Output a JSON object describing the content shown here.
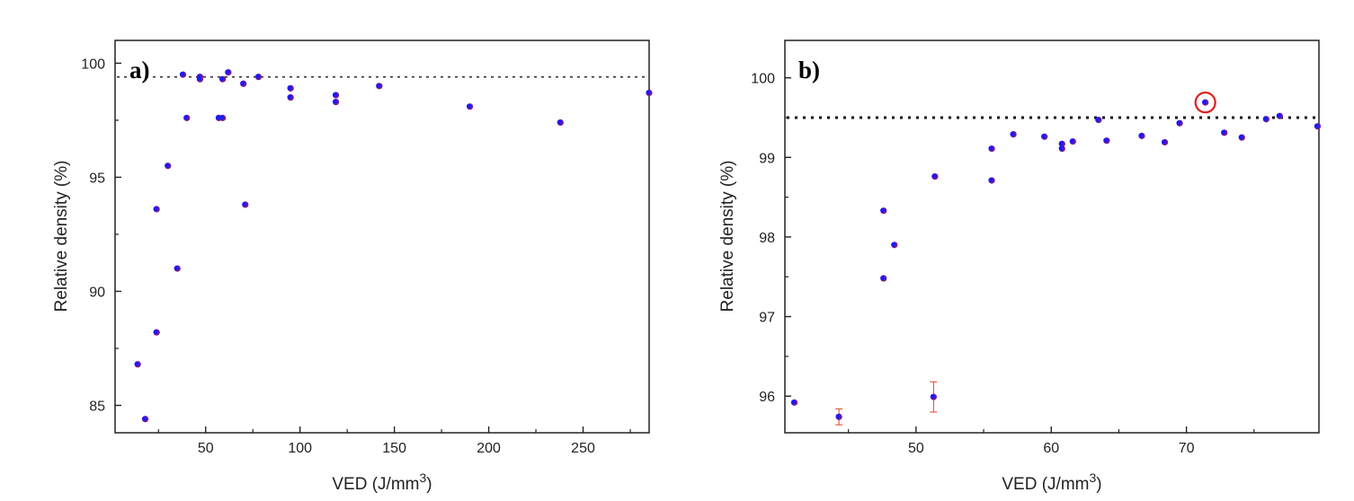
{
  "chart_data": [
    {
      "type": "scatter",
      "panel_label": "a)",
      "xlabel": "VED (J/mm",
      "xlabel_sup": "3",
      "xlabel_suffix": ")",
      "ylabel": "Relative density (%)",
      "xlim": [
        2,
        285
      ],
      "ylim": [
        83.8,
        101.0
      ],
      "xticks": [
        50,
        100,
        150,
        200,
        250
      ],
      "yticks": [
        85,
        90,
        95,
        100
      ],
      "reference_line": 99.4,
      "colors": {
        "point_a": "#1a1aff",
        "point_b": "#7a1a8a",
        "reference_line": "#333333"
      },
      "points": [
        {
          "x": 14,
          "y": 86.8
        },
        {
          "x": 18,
          "y": 84.4
        },
        {
          "x": 24,
          "y": 93.6
        },
        {
          "x": 24,
          "y": 88.2
        },
        {
          "x": 30,
          "y": 95.5
        },
        {
          "x": 35,
          "y": 91.0
        },
        {
          "x": 38,
          "y": 99.5
        },
        {
          "x": 40,
          "y": 97.6
        },
        {
          "x": 47,
          "y": 99.4
        },
        {
          "x": 47,
          "y": 99.3
        },
        {
          "x": 57,
          "y": 97.6
        },
        {
          "x": 59,
          "y": 97.6
        },
        {
          "x": 59,
          "y": 99.3
        },
        {
          "x": 62,
          "y": 99.6
        },
        {
          "x": 70,
          "y": 99.1
        },
        {
          "x": 71,
          "y": 93.8
        },
        {
          "x": 78,
          "y": 99.4
        },
        {
          "x": 95,
          "y": 98.9
        },
        {
          "x": 95,
          "y": 98.5
        },
        {
          "x": 119,
          "y": 98.6
        },
        {
          "x": 119,
          "y": 98.3
        },
        {
          "x": 142,
          "y": 99.0
        },
        {
          "x": 190,
          "y": 98.1
        },
        {
          "x": 238,
          "y": 97.4
        },
        {
          "x": 285,
          "y": 98.7
        }
      ]
    },
    {
      "type": "scatter",
      "panel_label": "b)",
      "xlabel": "VED (J/mm",
      "xlabel_sup": "3",
      "xlabel_suffix": ")",
      "ylabel": "Relative density (%)",
      "xlim": [
        40.3,
        79.8
      ],
      "ylim": [
        95.54,
        100.47
      ],
      "xticks": [
        50,
        60,
        70
      ],
      "yticks": [
        96,
        97,
        98,
        99,
        100
      ],
      "reference_line": 99.5,
      "colors": {
        "point_a": "#1a1aff",
        "point_b": "#7a1a8a",
        "reference_line": "#111111",
        "error_bar": "#e0604a",
        "highlight": "#e02020"
      },
      "highlight_point_index": 23,
      "points": [
        {
          "x": 41,
          "y": 95.92
        },
        {
          "x": 44.3,
          "y": 95.74,
          "err": 0.1
        },
        {
          "x": 47.6,
          "y": 98.33
        },
        {
          "x": 47.6,
          "y": 97.48
        },
        {
          "x": 48.4,
          "y": 97.9
        },
        {
          "x": 51.3,
          "y": 95.99,
          "err": 0.19
        },
        {
          "x": 51.4,
          "y": 98.76
        },
        {
          "x": 55.6,
          "y": 99.11
        },
        {
          "x": 55.6,
          "y": 98.71
        },
        {
          "x": 57.2,
          "y": 99.29
        },
        {
          "x": 59.5,
          "y": 99.26
        },
        {
          "x": 60.8,
          "y": 99.17
        },
        {
          "x": 60.8,
          "y": 99.11
        },
        {
          "x": 61.6,
          "y": 99.2
        },
        {
          "x": 63.5,
          "y": 99.47
        },
        {
          "x": 64.1,
          "y": 99.21
        },
        {
          "x": 66.7,
          "y": 99.27
        },
        {
          "x": 68.4,
          "y": 99.19
        },
        {
          "x": 69.5,
          "y": 99.43
        },
        {
          "x": 72.8,
          "y": 99.31
        },
        {
          "x": 74.1,
          "y": 99.25
        },
        {
          "x": 75.9,
          "y": 99.48
        },
        {
          "x": 76.9,
          "y": 99.52
        },
        {
          "x": 71.4,
          "y": 99.69
        },
        {
          "x": 79.7,
          "y": 99.39
        }
      ]
    }
  ]
}
